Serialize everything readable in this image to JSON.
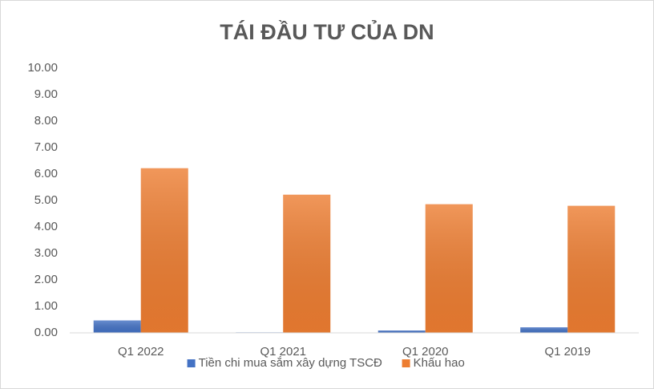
{
  "chart_data": {
    "type": "bar",
    "title": "TÁI ĐẦU TƯ CỦA DN",
    "categories": [
      "Q1 2022",
      "Q1 2021",
      "Q1 2020",
      "Q1 2019"
    ],
    "series": [
      {
        "name": "Tiền chi mua sắm xây dựng TSCĐ",
        "color": "#4472c4",
        "values": [
          0.47,
          0.02,
          0.09,
          0.21
        ]
      },
      {
        "name": "Khấu hao",
        "color": "#ed7d31",
        "values": [
          6.22,
          5.22,
          4.86,
          4.8
        ]
      }
    ],
    "ylim": [
      0,
      10
    ],
    "yticks": [
      {
        "value": 0,
        "label": "0.00"
      },
      {
        "value": 1,
        "label": "1.00"
      },
      {
        "value": 2,
        "label": "2.00"
      },
      {
        "value": 3,
        "label": "3.00"
      },
      {
        "value": 4,
        "label": "4.00"
      },
      {
        "value": 5,
        "label": "5.00"
      },
      {
        "value": 6,
        "label": "6.00"
      },
      {
        "value": 7,
        "label": "7.00"
      },
      {
        "value": 8,
        "label": "8.00"
      },
      {
        "value": 9,
        "label": "9.00"
      },
      {
        "value": 10,
        "label": "10.00"
      }
    ],
    "grid": false,
    "legend": "bottom"
  }
}
